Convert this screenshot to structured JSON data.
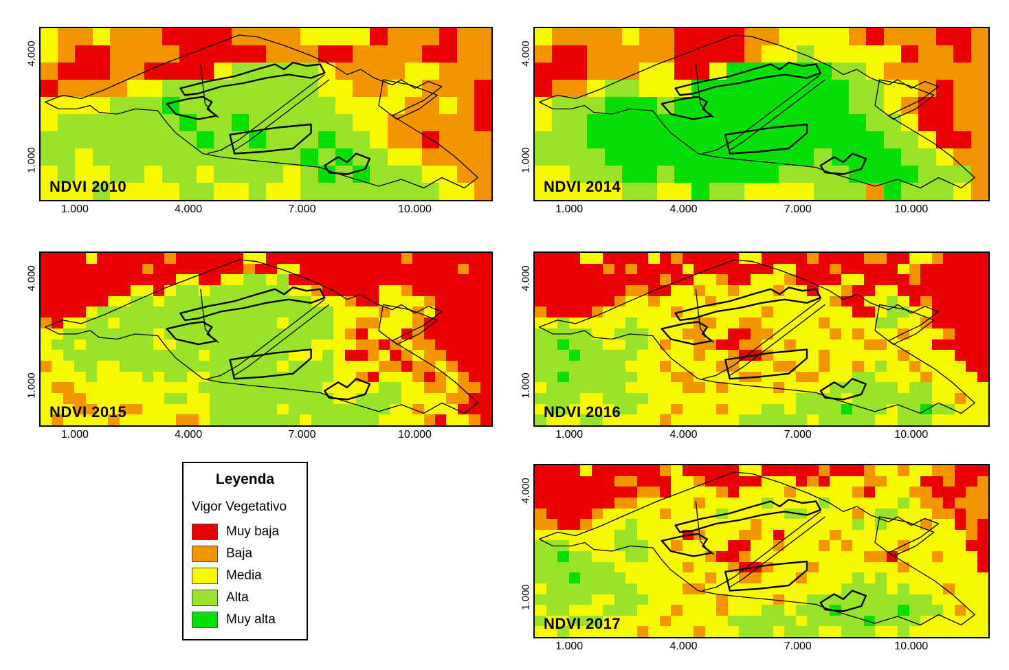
{
  "figure": {
    "background": "#FFFFFF"
  },
  "palette": {
    "R": "#EA0000",
    "O": "#F39500",
    "Y": "#F8F800",
    "G": "#99E32B",
    "M": "#06DF06"
  },
  "legend": {
    "title": "Leyenda",
    "subtitle": "Vigor Vegetativo",
    "items": [
      {
        "label": "Muy baja",
        "code": "R",
        "color": "#EA0000"
      },
      {
        "label": "Baja",
        "code": "O",
        "color": "#F39500"
      },
      {
        "label": "Media",
        "code": "Y",
        "color": "#F8F800"
      },
      {
        "label": "Alta",
        "code": "G",
        "color": "#99E32B"
      },
      {
        "label": "Muy alta",
        "code": "M",
        "color": "#06DF06"
      }
    ]
  },
  "axes": {
    "x_ticks": [
      {
        "label": "1.000"
      },
      {
        "label": "4.000"
      },
      {
        "label": "7.000"
      },
      {
        "label": "10.000"
      }
    ],
    "y_ticks": [
      {
        "label": "4.000"
      },
      {
        "label": "1.000"
      }
    ]
  },
  "maps": [
    {
      "id": "ndvi-2010",
      "label": "NDVI 2010",
      "cols": 26,
      "rows": 10,
      "grid": [
        "YOOYOOORRRROOOOYYYYROOOROO",
        "YORROOOORRRRROOORROOOORROO",
        "ORRROORRRRYGGGGGYOOOOYYOOO",
        "ROOOOYYGGGGGGGGGYYOOYYOOOR",
        "YYYYGGGMGGGGGGGGGYYYYOOYOR",
        "YGGGGGGGMGGMGGGGGGYYOOOOOR",
        "GGGGGGGGGMGGMGGGMGGYOOROOO",
        "GGYGGGGGGGGGGGGMGMGGYYOOOO",
        "YGYYGGYGGYGGGGYGMGMGGGYYOO",
        "YYYGYYYYGGYYGYYGGGGGGGGYYO"
      ]
    },
    {
      "id": "ndvi-2014",
      "label": "NDVI 2014",
      "cols": 26,
      "rows": 10,
      "grid": [
        "YOOOOYOORRRROOYYYYOROOORRO",
        "ORROOOOORRRROYYGYYYYYROORO",
        "RRROOOYYRRYMMMMMMGGYOOOOOO",
        "ROOYGGYYYMMMMMMMMMGGYYOROO",
        "YGGGMMMGMMMMMMMMMMGGYORROO",
        "YGGMMMMMMMMMMMMMMMMGGYRROO",
        "GGGMMMMMMMMMMMMMMMMMGGYRRO",
        "GGGGMMMMMMMMMMMMGMMMMGGYOO",
        "YYGGGMMGMMMMMMGGGGMMMMGGGO",
        "YYYYYGGYYMGGYYYYGGGOMGGGYO"
      ]
    },
    {
      "id": "ndvi-2015",
      "label": "NDVI 2015",
      "cols": 40,
      "rows": 16,
      "grid": [
        "RRRRYRRRRRRORRRRRRYYRRRRRRRRRRRRORRRRRRR",
        "RRRRRRRRRORRRRRRRRORRYYRRRRRRRRRRRRRRORR",
        "RRRRRRRRRRRRYYRRYYGGYGRRRRRRRRRRRRRRRRRR",
        "RRRRRRRRYYRYGGYGGGGGGGYYORRRRRYYORRRRRRR",
        "RRRRRRYYGGYGGGGGGGGGGGGGYYYORRYYYYORRRRR",
        "RRRRYGGGGGGGGGGGGGGGGGGGGGYYYYOYYOYRRRRR",
        "ORYYGGYGGGGGGGGGGGGGGYGGGGYYOOYYYORRRRRR",
        "YYGGGGGGGGYGGGGGGGGGGGGGGGYORYYYRORRRRRR",
        "YGGYGGGGGGYYGGGGGGGGGGGGYYYYOOROYOORRRRR",
        "YYGGGGGGGGGGGGYGGGGGGGYYYGYRROYROYOORRRR",
        "OYYGGYYGGGGGGGGGGGGGGYGGGGYYYYOOROOYORRR",
        "YYYYGYYYYGYGGYYGGGGGGGGGGGYYORYYYOROYORR",
        "YOOYYYYYYYYYYYGGGGGGGGGGGYYYYYGGYYOOYOOR",
        "YYOOYYYYYYYGGYYGGGGGGGGGGGYYGGGGYYYYOORR",
        "YYYOOYYOOYYYYYYGGGGGGYGGGGGGGGGYYOYYYRRR",
        "YOYYYYOYYYYYOOYGGGGGGGGYGGGGGGYYYYORYYOR"
      ]
    },
    {
      "id": "ndvi-2016",
      "label": "NDVI 2016",
      "cols": 40,
      "rows": 16,
      "grid": [
        "RRRRYYRRRRYRORRRRRYYRRRRORRRROORRYYORRRR",
        "RRRRRRORORRRRYRRRRRRRYYRRRORRRRRYORRRRRR",
        "RRRRRRRRRRRORRYYORRYYYORRRRYYRRRRORRRRRR",
        "RRRRRRRROORRYYOYYOYYYOYYRYYORRYYRRRRRRRR",
        "RRRRRRROYYOYYYYOYYYYYYYYYYORRYYGYRORRRRR",
        "ORRRROYYYYYYOYYYYYYYOYYYYYYYRRYGGYYRRRRR",
        "YYGYYYYYGYYYYYOOYYOOYYYYYOYYYYGGYYORRRRR",
        "GGGGGYYGGGYYYOOYYRROOYYYYYOYOYYYOYYYORRR",
        "GGMGGGYYGGYOYYOORROOYYOYYYYYYOOYYYYRRRRR",
        "GGGMGGGGGYYYYYOYYORROYYYYOYYYYYYOYYYYRRR",
        "GGGGGGGGYYYOYYYYOOYYYOOYYOYYOYGYYOYYYYRR",
        "GGMGGGGGGYYYOOYYYYOOYYYOOYYYGGYYYYOYYYYR",
        "YGGGGGGGYYYYYOOYOYYYYOYYYYGGGGGGYGGYYYYY",
        "GGGGYYGGGGYYYYYYYYYYYYYGGGGYGGGGGGGYYOYY",
        "YGGYYYYGGYYYOYYYOYYYGGYGGGGMGGGYGGMGGYYY",
        "GYYYGGYYYYYOYYYYYYGGGGGGYGGGGGYYGGGYYYYY"
      ]
    },
    {
      "id": "ndvi-2017",
      "label": "NDVI 2017",
      "cols": 40,
      "rows": 16,
      "grid": [
        "RRRRYRRRRRROYRRRRRYYRRRRRORRROYYOYYOORRR",
        "RRRRRRROORRRYYORRRRRYYYRORYYYOOYYYRRORRO",
        "RRRRRRRRROORYYYYORYYYYOYYYYYORYYYOORRROO",
        "RRRRRRROOYYYYYOYYYYYGYYYYGYYYYYYGYOOROOO",
        "ORRRROYYYYYOYYYYGYYYYYGGYYYYOYGGYYYOOROO",
        "OORROYYYGYYYYYYYYYYOYYYYYYYYGYGYYYOYYROR",
        "YYYYYYYGGYYYYROYYYOOYRYYYYOYYYYYYYYYYYOR",
        "GGGYYYYGGGYYOYYYYRRYYOYYYOYOYYYYOYYYYYRR",
        "GGMGGYYYGGYYYYYORROYYYYYYYYYYOORYYYOYYYR",
        "GGGGGGGYYYYYYOYYYORROYYYOYYYYYYYOYYYYYYR",
        "GGGMGGGGYYYYYYYOYYOOYYYOYYYYGYGYYYYYYYYY",
        "YGGGGGGGGYYYYOOYYYYYYYYYYYYGGGGYGYYYOYYY",
        "GGGGGYYGGGYYYYYYOYYYYOYYGGGGGGGGGGGYYYYY",
        "YGGYYYGGGYYYOYYYOYYYGGYGGGMGGGGGMGGGYOYY",
        "GYYGGGYYYYYOYYYYYGGGGGGYGGGGGMGGGGYYYYYY",
        "YYGYYYYYYOYYYYOYYYGGGYGGGYYGGGYYGYYYYYYY"
      ]
    }
  ],
  "overlay": {
    "polygons": [
      {
        "name": "study-area-outer",
        "thick": false,
        "closed": true,
        "points": [
          [
            1,
            43
          ],
          [
            5,
            39
          ],
          [
            9,
            41
          ],
          [
            14,
            36
          ],
          [
            20,
            29
          ],
          [
            27,
            21
          ],
          [
            35,
            13
          ],
          [
            44,
            4
          ],
          [
            48,
            5
          ],
          [
            54,
            10
          ],
          [
            60,
            16
          ],
          [
            65,
            22
          ],
          [
            68,
            27
          ],
          [
            71,
            24
          ],
          [
            74,
            29
          ],
          [
            78,
            33
          ],
          [
            80,
            30
          ],
          [
            83,
            35
          ],
          [
            86,
            31
          ],
          [
            89,
            34
          ],
          [
            85,
            42
          ],
          [
            81,
            47
          ],
          [
            78,
            51
          ],
          [
            83,
            59
          ],
          [
            88,
            67
          ],
          [
            92,
            75
          ],
          [
            97,
            87
          ],
          [
            94,
            93
          ],
          [
            89,
            87
          ],
          [
            85,
            93
          ],
          [
            80,
            88
          ],
          [
            75,
            92
          ],
          [
            70,
            88
          ],
          [
            65,
            84
          ],
          [
            62,
            81
          ],
          [
            55,
            79
          ],
          [
            47,
            77
          ],
          [
            40,
            75
          ],
          [
            36,
            73
          ],
          [
            33,
            67
          ],
          [
            30,
            61
          ],
          [
            28,
            55
          ],
          [
            26,
            48
          ],
          [
            21,
            47
          ],
          [
            17,
            50
          ],
          [
            13,
            49
          ],
          [
            11,
            45
          ],
          [
            8,
            47
          ],
          [
            4,
            47
          ]
        ]
      },
      {
        "name": "parcel-divider",
        "thick": false,
        "closed": false,
        "points": [
          [
            35.5,
            21
          ],
          [
            36,
            33
          ],
          [
            36.5,
            44
          ],
          [
            38,
            49
          ],
          [
            39.5,
            52
          ]
        ]
      },
      {
        "name": "parcel-top",
        "thick": true,
        "closed": true,
        "points": [
          [
            31,
            35
          ],
          [
            37,
            31
          ],
          [
            43,
            28
          ],
          [
            48,
            24
          ],
          [
            52,
            21
          ],
          [
            54,
            24
          ],
          [
            56,
            20
          ],
          [
            59,
            22
          ],
          [
            62,
            21
          ],
          [
            63,
            26
          ],
          [
            60,
            29
          ],
          [
            55,
            27
          ],
          [
            50,
            29
          ],
          [
            45,
            32
          ],
          [
            40,
            34
          ],
          [
            35,
            38
          ],
          [
            32,
            39
          ]
        ]
      },
      {
        "name": "parcel-left",
        "thick": true,
        "closed": true,
        "points": [
          [
            28,
            44
          ],
          [
            33,
            41
          ],
          [
            36,
            40
          ],
          [
            38,
            43
          ],
          [
            37,
            47
          ],
          [
            39,
            51
          ],
          [
            35,
            53
          ],
          [
            30,
            50
          ]
        ]
      },
      {
        "name": "parcel-diagonal-a",
        "thick": false,
        "closed": false,
        "points": [
          [
            63,
            27
          ],
          [
            58,
            37
          ],
          [
            53,
            47
          ],
          [
            48,
            57
          ],
          [
            44,
            65
          ],
          [
            40,
            71
          ],
          [
            37,
            73
          ]
        ]
      },
      {
        "name": "parcel-diagonal-b",
        "thick": false,
        "closed": false,
        "points": [
          [
            64,
            30
          ],
          [
            59,
            40
          ],
          [
            54,
            50
          ],
          [
            49,
            60
          ],
          [
            46,
            66
          ],
          [
            43,
            71
          ]
        ]
      },
      {
        "name": "parcel-bottom",
        "thick": true,
        "closed": true,
        "points": [
          [
            42,
            62
          ],
          [
            52,
            58
          ],
          [
            60,
            56
          ],
          [
            60,
            61
          ],
          [
            56,
            70
          ],
          [
            49,
            72
          ],
          [
            43,
            73
          ]
        ]
      },
      {
        "name": "parcel-southeast",
        "thick": true,
        "closed": true,
        "points": [
          [
            63,
            80
          ],
          [
            66,
            75
          ],
          [
            68,
            78
          ],
          [
            70,
            73
          ],
          [
            73,
            76
          ],
          [
            72,
            82
          ],
          [
            68,
            85
          ],
          [
            64,
            84
          ]
        ]
      },
      {
        "name": "parcel-right",
        "thick": false,
        "closed": true,
        "points": [
          [
            76,
            30
          ],
          [
            82,
            33
          ],
          [
            88,
            39
          ],
          [
            84,
            47
          ],
          [
            79,
            53
          ],
          [
            75,
            45
          ]
        ]
      }
    ]
  }
}
